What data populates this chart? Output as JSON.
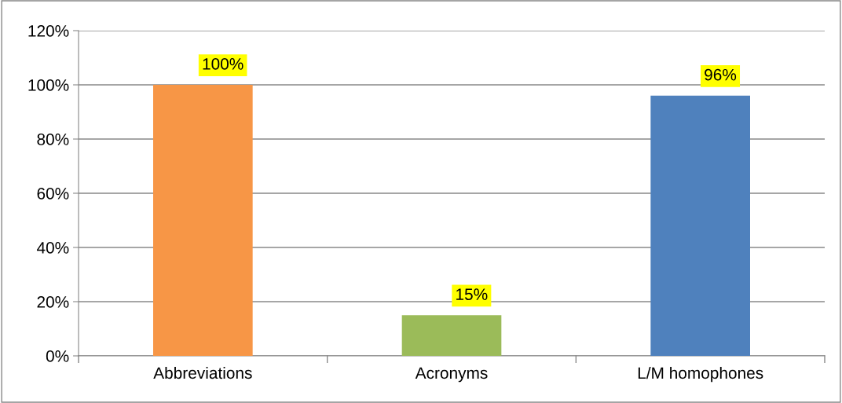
{
  "chart_data": {
    "type": "bar",
    "categories": [
      "Abbreviations",
      "Acronyms",
      "L/M homophones"
    ],
    "values": [
      100,
      15,
      96
    ],
    "colors": [
      "#f79646",
      "#9bbb59",
      "#4f81bd"
    ],
    "value_labels": [
      "100%",
      "15%",
      "96%"
    ],
    "ylim": [
      0,
      120
    ],
    "yticks": [
      {
        "value": 0,
        "label": "0%"
      },
      {
        "value": 20,
        "label": "20%"
      },
      {
        "value": 40,
        "label": "40%"
      },
      {
        "value": 60,
        "label": "60%"
      },
      {
        "value": 80,
        "label": "80%"
      },
      {
        "value": 100,
        "label": "100%"
      },
      {
        "value": 120,
        "label": "120%"
      }
    ],
    "grid": "y",
    "legend": false
  }
}
